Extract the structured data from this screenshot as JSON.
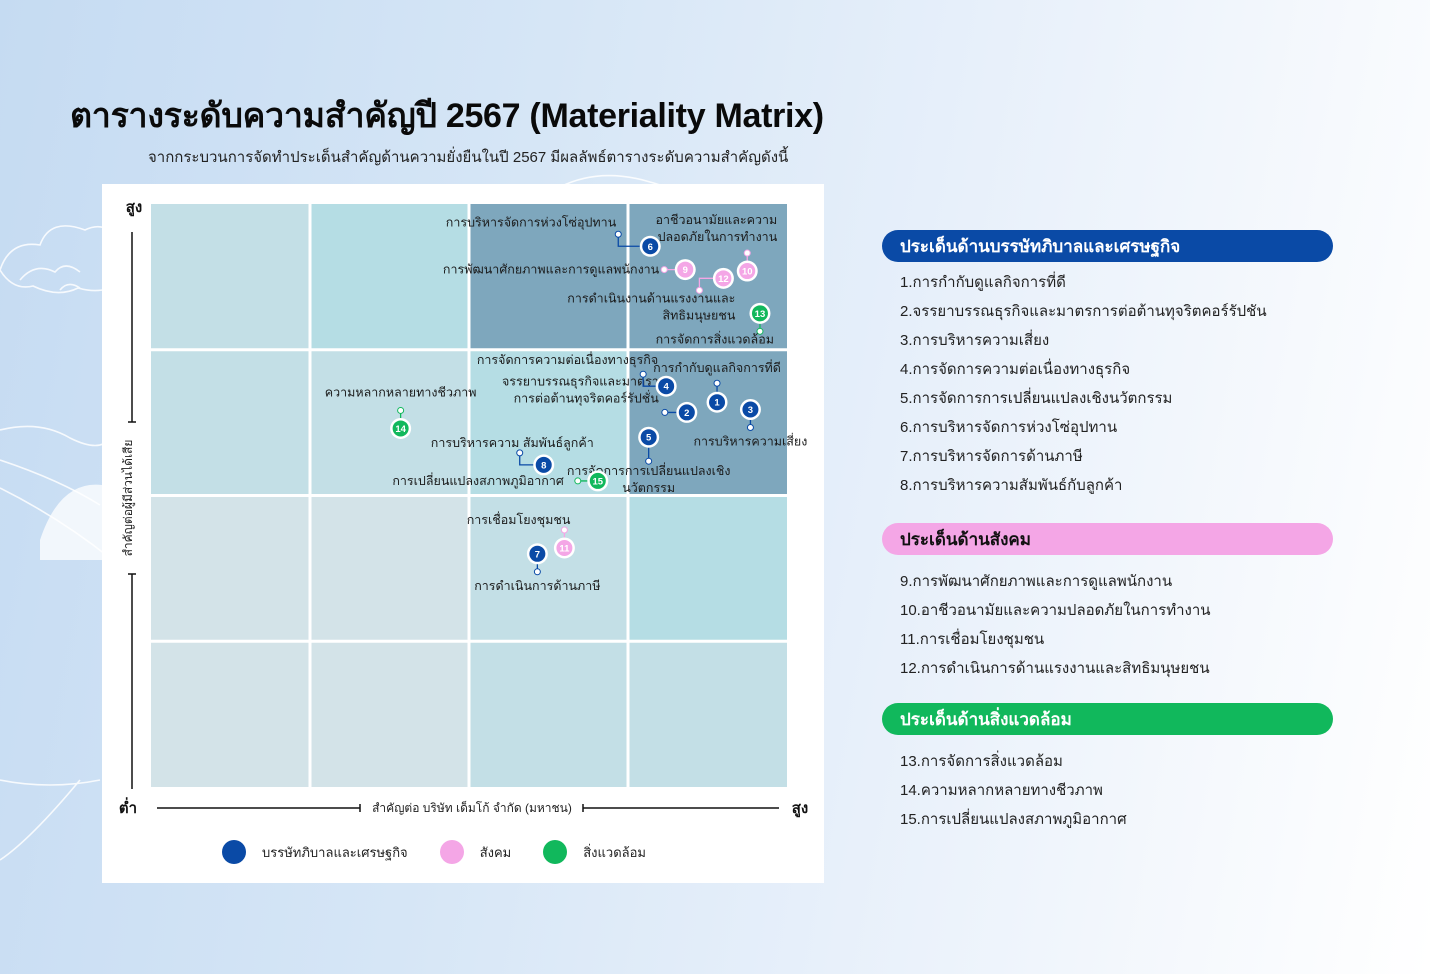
{
  "header": {
    "title": "ตารางระดับความสำคัญปี 2567 (Materiality Matrix)",
    "subtitle": "จากกระบวนการจัดทำประเด็นสำคัญด้านความยั่งยืนในปี 2567 มีผลลัพธ์ตารางระดับความสำคัญดังนี้"
  },
  "colors": {
    "governance": "#0a4aa6",
    "social": "#f4a6e6",
    "environment": "#11b85c",
    "cell_low": "#d3e3e8",
    "cell_mid": "#c3dfe6",
    "cell_cyan": "#b5dde4",
    "cell_high": "#7ea7bd"
  },
  "chart_data": {
    "type": "scatter",
    "title": "Materiality Matrix",
    "xlabel": "สำคัญต่อ บริษัท เด็มโก้ จำกัด (มหาชน)",
    "ylabel": "สำคัญต่อผู้มีส่วนได้เสีย",
    "x_low_label": "ต่ำ",
    "x_high_label": "สูง",
    "y_high_label": "สูง",
    "xlim": [
      0,
      4
    ],
    "ylim": [
      0,
      4
    ],
    "grid": "4x4",
    "cell_levels": [
      [
        "cyan_low",
        "cyan",
        "high",
        "high"
      ],
      [
        "mid",
        "mid",
        "cyan",
        "high"
      ],
      [
        "low",
        "low",
        "mid",
        "cyan"
      ],
      [
        "low",
        "low",
        "mid",
        "mid"
      ]
    ],
    "legend": [
      {
        "key": "governance",
        "label": "บรรษัทภิบาลและเศรษฐกิจ"
      },
      {
        "key": "social",
        "label": "สังคม"
      },
      {
        "key": "environment",
        "label": "สิ่งแวดล้อม"
      }
    ],
    "legend_position": "bottom",
    "points": [
      {
        "id": "1",
        "category": "governance",
        "x": 3.56,
        "y": 2.64,
        "label": [
          "การกำกับดูแลกิจการที่ดี"
        ]
      },
      {
        "id": "2",
        "category": "governance",
        "x": 3.37,
        "y": 2.57,
        "label": [
          "จรรยาบรรณธุรกิจและมาตรา",
          "การต่อต้านทุจริตคอร์รัปชั่น"
        ]
      },
      {
        "id": "3",
        "category": "governance",
        "x": 3.77,
        "y": 2.59,
        "label": [
          "การบริหารความเสี่ยง"
        ]
      },
      {
        "id": "4",
        "category": "governance",
        "x": 3.24,
        "y": 2.75,
        "label": [
          "การจัดการความต่อเนื่องทางธุรกิจ"
        ]
      },
      {
        "id": "5",
        "category": "governance",
        "x": 3.13,
        "y": 2.4,
        "label": [
          "การจัดการการเปลี่ยนแปลงเชิง",
          "นวัตกรรม"
        ]
      },
      {
        "id": "6",
        "category": "governance",
        "x": 3.14,
        "y": 3.71,
        "label": [
          "การบริหารจัดการห่วงโซ่อุปทาน"
        ]
      },
      {
        "id": "7",
        "category": "governance",
        "x": 2.43,
        "y": 1.6,
        "label": [
          "การดำเนินการด้านภาษี"
        ]
      },
      {
        "id": "8",
        "category": "governance",
        "x": 2.47,
        "y": 2.21,
        "label": [
          "การบริหารความ สัมพันธ์ลูกค้า"
        ]
      },
      {
        "id": "9",
        "category": "social",
        "x": 3.36,
        "y": 3.55,
        "label": [
          "การพัฒนาศักยภาพและการดูแลพนักงาน"
        ]
      },
      {
        "id": "10",
        "category": "social",
        "x": 3.75,
        "y": 3.54,
        "label": [
          "อาชีวอนามัยและความ",
          "ปลอดภัยในการทำงาน"
        ]
      },
      {
        "id": "11",
        "category": "social",
        "x": 2.6,
        "y": 1.64,
        "label": [
          "การเชื่อมโยงชุมชน"
        ]
      },
      {
        "id": "12",
        "category": "social",
        "x": 3.6,
        "y": 3.49,
        "label": [
          "การดำเนินงานด้านแรงงานและ",
          "สิทธิมนุษยชน"
        ]
      },
      {
        "id": "13",
        "category": "environment",
        "x": 3.83,
        "y": 3.25,
        "label": [
          "การจัดการสิ่งแวดล้อม"
        ]
      },
      {
        "id": "14",
        "category": "environment",
        "x": 1.57,
        "y": 2.46,
        "label": [
          "ความหลากหลายทางชีวภาพ"
        ]
      },
      {
        "id": "15",
        "category": "environment",
        "x": 2.81,
        "y": 2.1,
        "label": [
          "การเปลี่ยนแปลงสภาพภูมิอากาศ"
        ]
      }
    ]
  },
  "panels": [
    {
      "key": "governance",
      "title": "ประเด็นด้านบรรษัทภิบาลและเศรษฐกิจ",
      "items": [
        "1.การกำกับดูแลกิจการที่ดี",
        "2.จรรยาบรรณธุรกิจและมาตรการต่อต้านทุจริตคอร์รัปชัน",
        "3.การบริหารความเสี่ยง",
        "4.การจัดการความต่อเนื่องทางธุรกิจ",
        "5.การจัดการการเปลี่ยนแปลงเชิงนวัตกรรม",
        "6.การบริหารจัดการห่วงโซ่อุปทาน",
        "7.การบริหารจัดการด้านภาษี",
        "8.การบริหารความสัมพันธ์กับลูกค้า"
      ]
    },
    {
      "key": "social",
      "title": "ประเด็นด้านสังคม",
      "items": [
        "9.การพัฒนาศักยภาพและการดูแลพนักงาน",
        "10.อาชีวอนามัยและความปลอดภัยในการทำงาน",
        "11.การเชื่อมโยงชุมชน",
        "12.การดำเนินการด้านแรงงานและสิทธิมนุษยชน"
      ]
    },
    {
      "key": "environment",
      "title": "ประเด็นด้านสิ่งแวดล้อม",
      "items": [
        "13.การจัดการสิ่งแวดล้อม",
        "14.ความหลากหลายทางชีวภาพ",
        "15.การเปลี่ยนแปลงสภาพภูมิอากาศ"
      ]
    }
  ]
}
